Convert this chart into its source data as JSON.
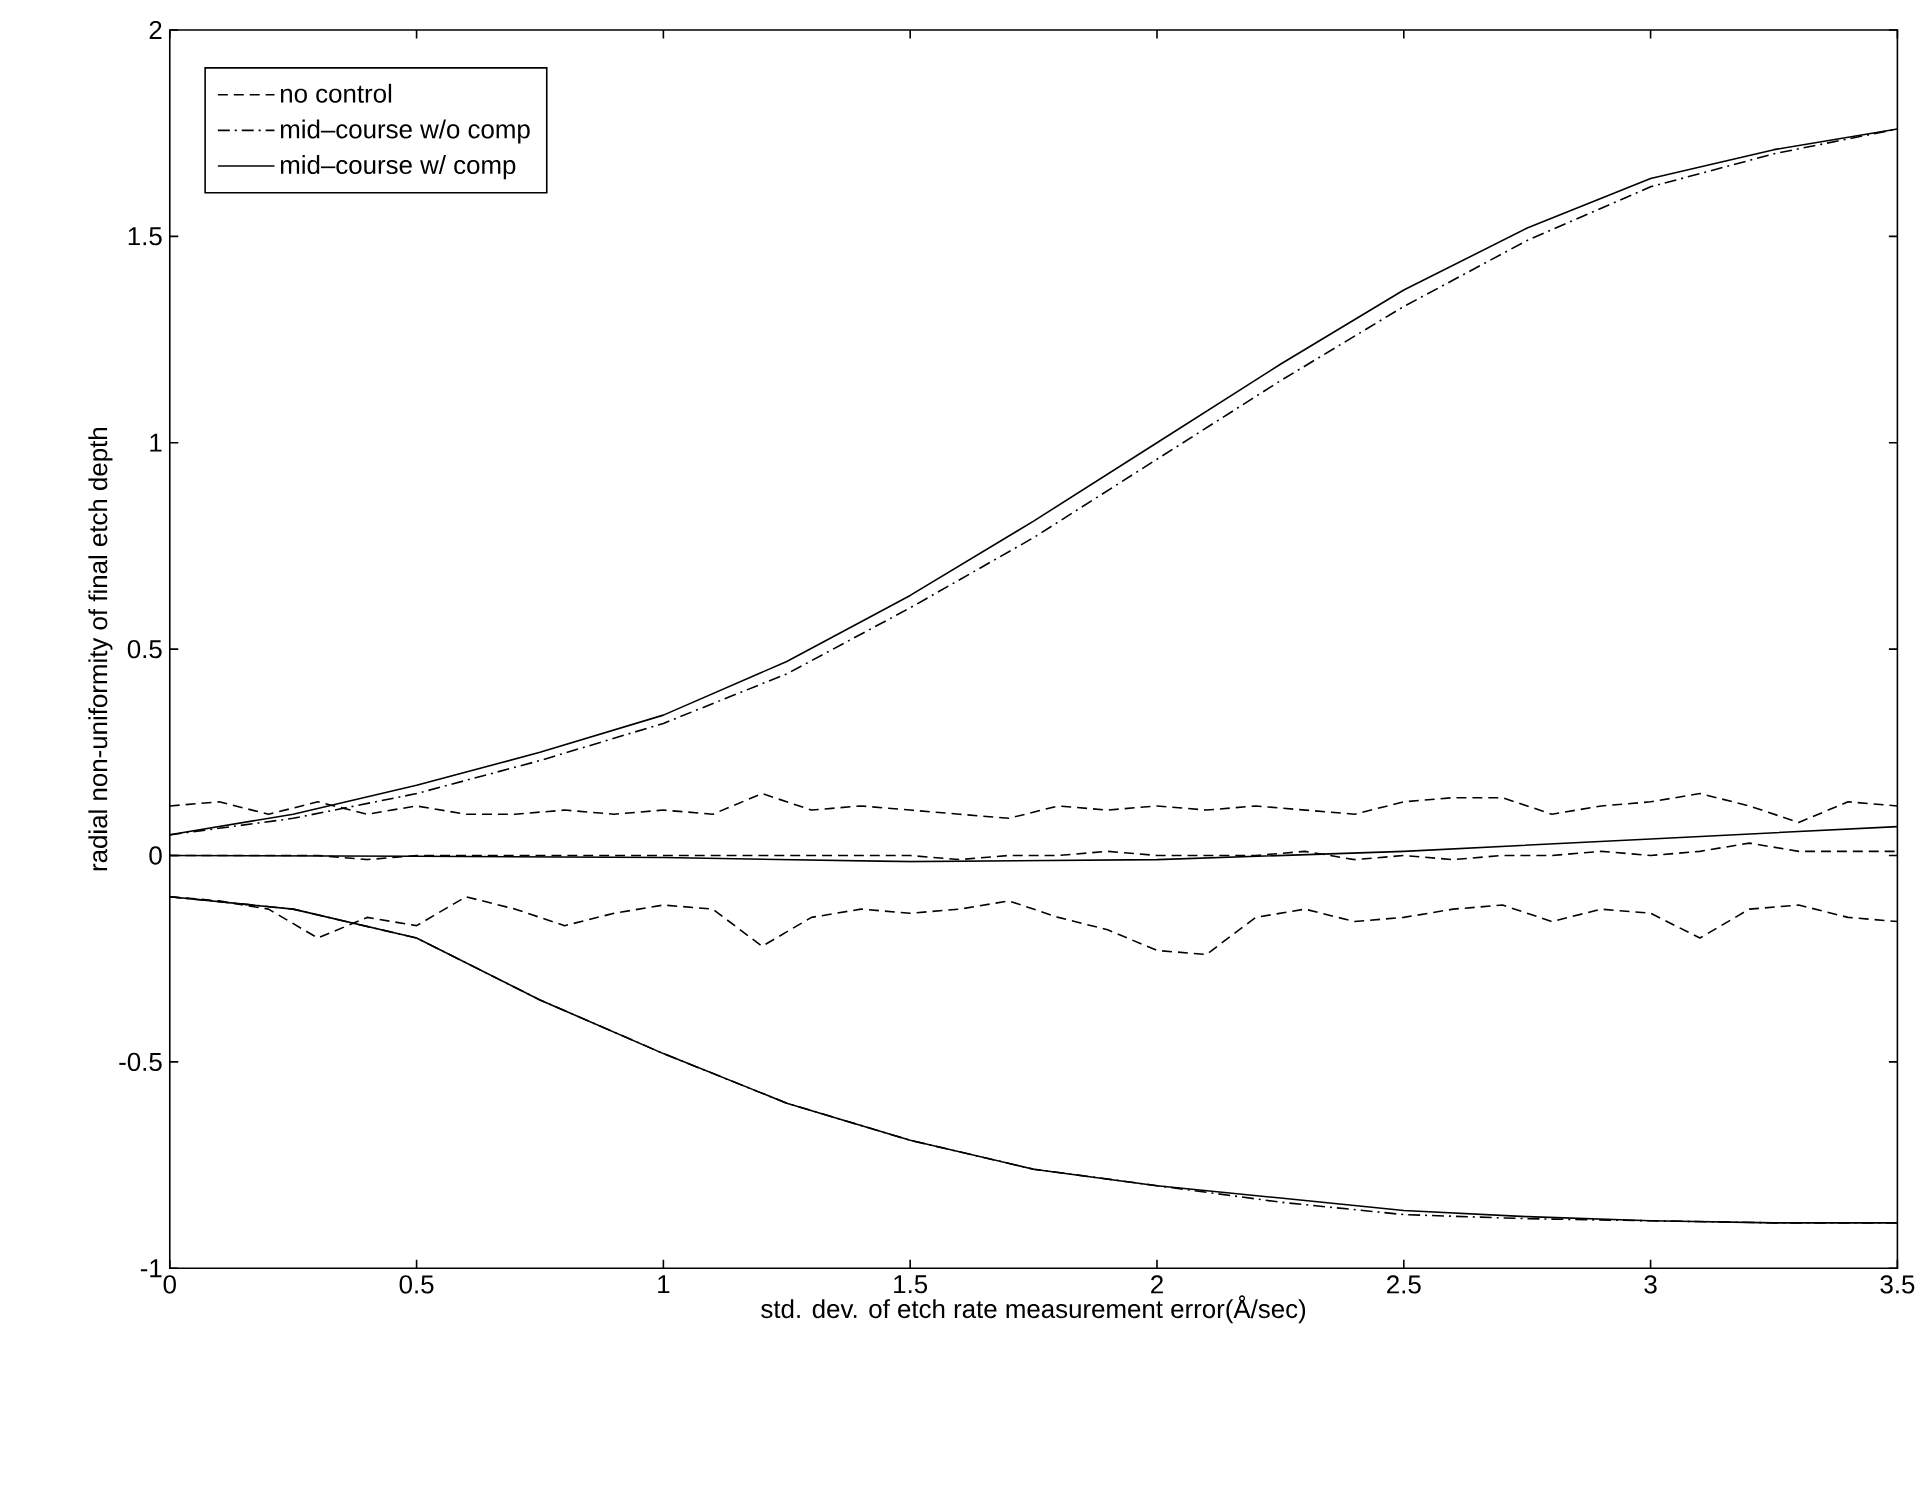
{
  "chart_data": {
    "type": "line",
    "xlabel": "std. dev. of etch rate measurement error(Å/sec)",
    "ylabel": "radial non-uniformity of final etch depth",
    "xlim": [
      0,
      3.5
    ],
    "ylim": [
      -1,
      2
    ],
    "xticks": [
      0,
      0.5,
      1,
      1.5,
      2,
      2.5,
      3,
      3.5
    ],
    "yticks": [
      -1,
      -0.5,
      0,
      0.5,
      1,
      1.5,
      2
    ],
    "legend": "top left",
    "grid": false,
    "series": [
      {
        "name": "no control",
        "color": "#000000",
        "line_style": "dashed",
        "x": [
          0,
          0.1,
          0.2,
          0.3,
          0.4,
          0.5,
          0.6,
          0.7,
          0.8,
          0.9,
          1,
          1.1,
          1.2,
          1.3,
          1.4,
          1.5,
          1.6,
          1.7,
          1.8,
          1.9,
          2,
          2.1,
          2.2,
          2.3,
          2.4,
          2.5,
          2.6,
          2.7,
          2.8,
          2.9,
          3,
          3.1,
          3.2,
          3.3,
          3.4,
          3.5
        ],
        "values": [
          0.12,
          0.13,
          0.1,
          0.13,
          0.1,
          0.12,
          0.1,
          0.1,
          0.11,
          0.1,
          0.11,
          0.1,
          0.15,
          0.11,
          0.12,
          0.11,
          0.1,
          0.09,
          0.12,
          0.11,
          0.12,
          0.11,
          0.12,
          0.11,
          0.1,
          0.13,
          0.14,
          0.14,
          0.1,
          0.12,
          0.13,
          0.15,
          0.12,
          0.08,
          0.13,
          0.12
        ]
      },
      {
        "name": "mid–course w/o comp",
        "color": "#000000",
        "line_style": "dashdot",
        "x": [
          0,
          0.25,
          0.5,
          0.75,
          1,
          1.25,
          1.5,
          1.75,
          2,
          2.25,
          2.5,
          2.75,
          3,
          3.25,
          3.5
        ],
        "values": [
          0.05,
          0.09,
          0.15,
          0.23,
          0.32,
          0.44,
          0.6,
          0.77,
          0.96,
          1.15,
          1.33,
          1.49,
          1.62,
          1.7,
          1.76
        ]
      },
      {
        "name": "mid–course w/ comp",
        "color": "#000000",
        "line_style": "solid",
        "x": [
          0,
          0.25,
          0.5,
          0.75,
          1,
          1.25,
          1.5,
          1.75,
          2,
          2.25,
          2.5,
          2.75,
          3,
          3.25,
          3.5
        ],
        "values": [
          0.05,
          0.1,
          0.17,
          0.25,
          0.34,
          0.47,
          0.63,
          0.81,
          1.0,
          1.19,
          1.37,
          1.52,
          1.64,
          1.71,
          1.76
        ]
      },
      {
        "color": "#000000",
        "line_style": "solid",
        "x": [
          0,
          0.5,
          1,
          1.5,
          2,
          2.5,
          3,
          3.5
        ],
        "values": [
          0,
          -0.002,
          -0.005,
          -0.015,
          -0.01,
          0.01,
          0.04,
          0.07
        ]
      },
      {
        "color": "#000000",
        "line_style": "solid",
        "x": [
          0,
          0.25,
          0.5,
          0.75,
          1,
          1.25,
          1.5,
          1.75,
          2,
          2.25,
          2.5,
          2.75,
          3,
          3.25,
          3.5
        ],
        "values": [
          -0.1,
          -0.13,
          -0.2,
          -0.35,
          -0.48,
          -0.6,
          -0.69,
          -0.76,
          -0.8,
          -0.83,
          -0.86,
          -0.875,
          -0.885,
          -0.89,
          -0.89
        ]
      },
      {
        "color": "#000000",
        "line_style": "dashed",
        "x": [
          0,
          0.1,
          0.2,
          0.3,
          0.4,
          0.5,
          0.6,
          0.7,
          0.8,
          0.9,
          1,
          1.1,
          1.2,
          1.3,
          1.4,
          1.5,
          1.6,
          1.7,
          1.8,
          1.9,
          2,
          2.1,
          2.2,
          2.3,
          2.4,
          2.5,
          2.6,
          2.7,
          2.8,
          2.9,
          3,
          3.1,
          3.2,
          3.3,
          3.4,
          3.5
        ],
        "values": [
          0,
          0,
          0,
          0,
          -0.01,
          0,
          0,
          0,
          0,
          0,
          0,
          0,
          0,
          0,
          0,
          0,
          -0.01,
          0,
          0,
          0.01,
          0,
          0,
          0,
          0.01,
          -0.01,
          0,
          -0.01,
          0,
          0,
          0.01,
          0,
          0.01,
          0.03,
          0.01,
          0.01,
          0.01
        ]
      },
      {
        "color": "#000000",
        "line_style": "dashed",
        "x": [
          0,
          0.1,
          0.2,
          0.3,
          0.4,
          0.5,
          0.6,
          0.7,
          0.8,
          0.9,
          1,
          1.1,
          1.2,
          1.3,
          1.4,
          1.5,
          1.6,
          1.7,
          1.8,
          1.9,
          2,
          2.1,
          2.2,
          2.3,
          2.4,
          2.5,
          2.6,
          2.7,
          2.8,
          2.9,
          3,
          3.1,
          3.2,
          3.3,
          3.4,
          3.5
        ],
        "values": [
          -0.1,
          -0.11,
          -0.13,
          -0.2,
          -0.15,
          -0.17,
          -0.1,
          -0.13,
          -0.17,
          -0.14,
          -0.12,
          -0.13,
          -0.22,
          -0.15,
          -0.13,
          -0.14,
          -0.13,
          -0.11,
          -0.15,
          -0.18,
          -0.23,
          -0.24,
          -0.15,
          -0.13,
          -0.16,
          -0.15,
          -0.13,
          -0.12,
          -0.16,
          -0.13,
          -0.14,
          -0.2,
          -0.13,
          -0.12,
          -0.15,
          -0.16
        ]
      },
      {
        "color": "#000000",
        "line_style": "dashdot",
        "x": [
          0,
          0.25,
          0.5,
          0.75,
          1,
          1.25,
          1.5,
          1.75,
          2,
          2.25,
          2.5,
          2.75,
          3,
          3.25,
          3.5
        ],
        "values": [
          -0.1,
          -0.13,
          -0.2,
          -0.35,
          -0.48,
          -0.6,
          -0.69,
          -0.76,
          -0.8,
          -0.84,
          -0.87,
          -0.88,
          -0.885,
          -0.89,
          -0.89
        ]
      }
    ]
  }
}
